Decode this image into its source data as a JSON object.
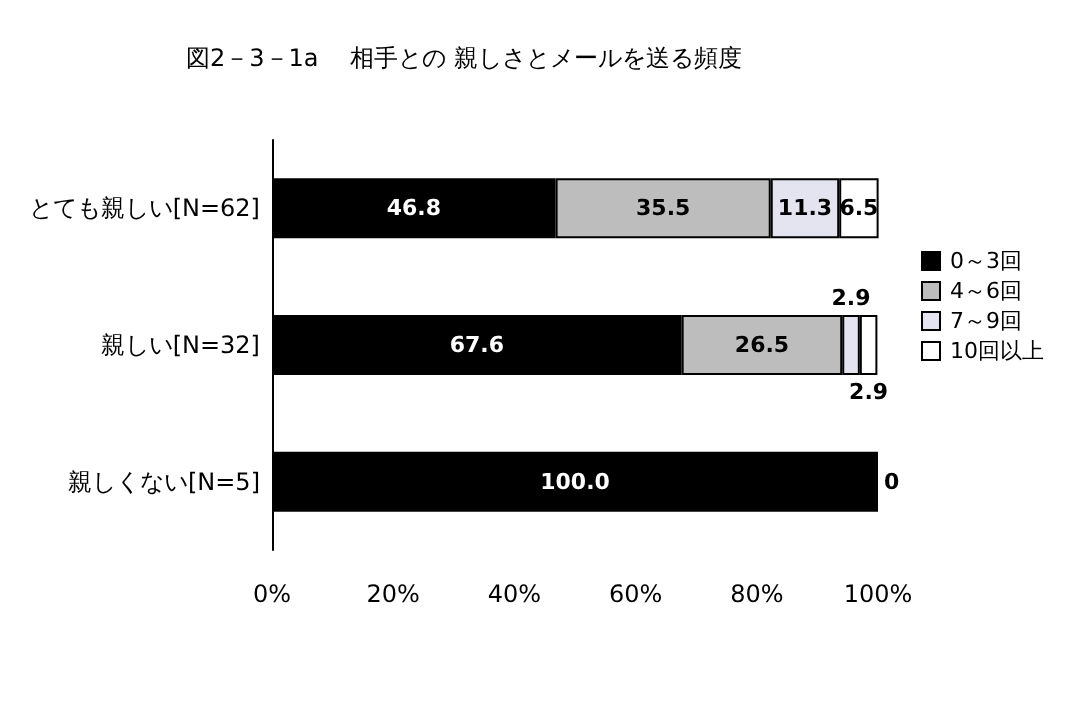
{
  "chart_data": {
    "type": "bar",
    "orientation": "horizontal",
    "stacked": true,
    "title": "図2－3－1a　 相手との 親しさとメールを送る頻度",
    "categories": [
      "とても親しい[N=62]",
      "親しい[N=32]",
      "親しくない[N=5]"
    ],
    "series": [
      {
        "name": "0～3回",
        "color": "#000000",
        "values": [
          46.8,
          67.6,
          100.0
        ],
        "value_labels": [
          "46.8",
          "67.6",
          "100.0"
        ]
      },
      {
        "name": "4～6回",
        "color": "#bdbdbd",
        "values": [
          35.5,
          26.5,
          0
        ],
        "value_labels": [
          "35.5",
          "26.5",
          "0"
        ]
      },
      {
        "name": "7～9回",
        "color": "#e4e4f0",
        "values": [
          11.3,
          2.9,
          0
        ],
        "value_labels": [
          "11.3",
          "2.9",
          null
        ]
      },
      {
        "name": "10回以上",
        "color": "#ffffff",
        "values": [
          6.5,
          2.9,
          0
        ],
        "value_labels": [
          "6.5",
          "2.9",
          null
        ]
      }
    ],
    "xlim": [
      0,
      100
    ],
    "xticks": [
      {
        "value": 0,
        "label": "0%"
      },
      {
        "value": 20,
        "label": "20%"
      },
      {
        "value": 40,
        "label": "40%"
      },
      {
        "value": 60,
        "label": "60%"
      },
      {
        "value": 80,
        "label": "80%"
      },
      {
        "value": 100,
        "label": "100%"
      }
    ],
    "grid": false,
    "legend": "right"
  }
}
